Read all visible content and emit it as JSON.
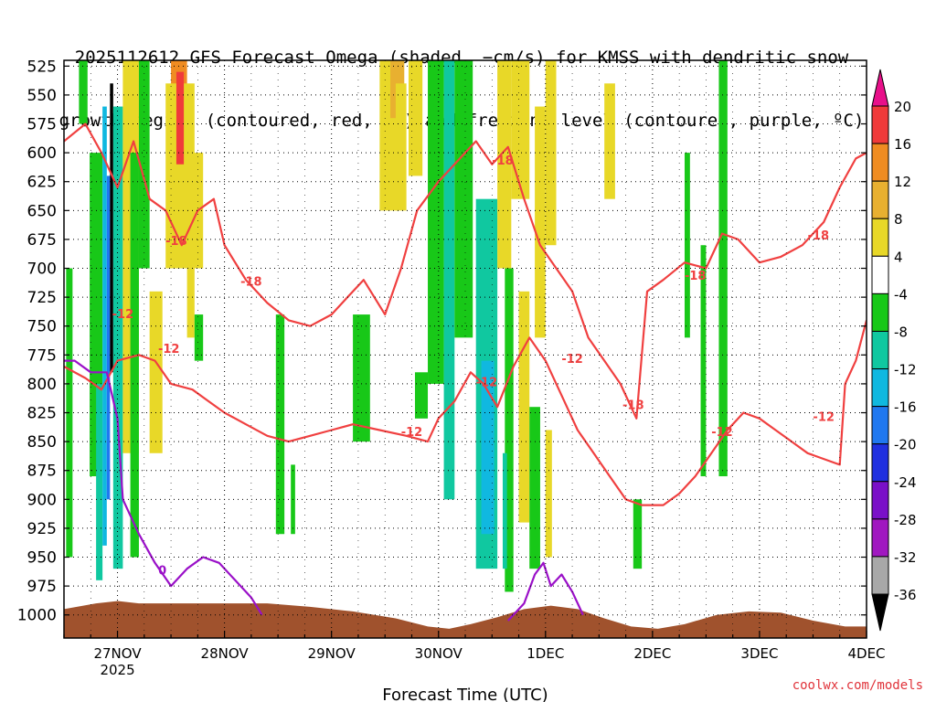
{
  "title_line1": "2025112612 GFS Forecast Omega (shaded, −cm/s) for KMSS with dendritic snow",
  "title_line2": "growth region (contoured, red, ºC) and freezing level (contoured, purple, ºC)",
  "credit": "coolwx.com/models",
  "chart_data": {
    "type": "heatmap",
    "title": "2025112612 GFS Forecast Omega (shaded, −cm/s) for KMSS with dendritic snow growth region (contoured, red, ºC) and freezing level (contoured, purple, ºC)",
    "xlabel": "Forecast Time (UTC)",
    "ylabel": "",
    "x_ticks": [
      {
        "day": 27,
        "label": "27NOV",
        "sublabel": "2025"
      },
      {
        "day": 28,
        "label": "28NOV"
      },
      {
        "day": 29,
        "label": "29NOV"
      },
      {
        "day": 30,
        "label": "30NOV"
      },
      {
        "day": 31,
        "label": "1DEC"
      },
      {
        "day": 32,
        "label": "2DEC"
      },
      {
        "day": 33,
        "label": "3DEC"
      },
      {
        "day": 34,
        "label": "4DEC"
      }
    ],
    "xlim_day": [
      26.5,
      34.0
    ],
    "y_ticks": [
      525,
      550,
      575,
      600,
      625,
      650,
      675,
      700,
      725,
      750,
      775,
      800,
      825,
      850,
      875,
      900,
      925,
      950,
      975,
      1000
    ],
    "ylim_hpa": [
      1020,
      520
    ],
    "grid": true,
    "colorbar": {
      "labels": [
        "20",
        "16",
        "12",
        "8",
        "4",
        "-4",
        "-8",
        "-12",
        "-16",
        "-20",
        "-24",
        "-28",
        "-32",
        "-36"
      ],
      "colors": [
        "#e8108a",
        "#f03a3a",
        "#ef8c22",
        "#e8b030",
        "#e8d828",
        "#ffffff",
        "#18c818",
        "#10c8a0",
        "#10b8e0",
        "#2078f0",
        "#2030e0",
        "#7a10c8",
        "#a018c0",
        "#a8a8a8",
        "#000000"
      ]
    },
    "contours": {
      "dgz_color": "#f04040",
      "freezing_color": "#9a10c8",
      "dgz_labels": [
        {
          "day": 27.05,
          "p": 743,
          "v": "-12"
        },
        {
          "day": 27.48,
          "p": 773,
          "v": "-12"
        },
        {
          "day": 27.55,
          "p": 680,
          "v": "-18"
        },
        {
          "day": 28.25,
          "p": 715,
          "v": "-18"
        },
        {
          "day": 29.75,
          "p": 845,
          "v": "-12"
        },
        {
          "day": 30.45,
          "p": 802,
          "v": "-12"
        },
        {
          "day": 30.6,
          "p": 610,
          "v": "-18"
        },
        {
          "day": 31.25,
          "p": 782,
          "v": "-12"
        },
        {
          "day": 31.82,
          "p": 822,
          "v": "-18"
        },
        {
          "day": 32.4,
          "p": 710,
          "v": "-18"
        },
        {
          "day": 32.65,
          "p": 845,
          "v": "-12"
        },
        {
          "day": 33.55,
          "p": 675,
          "v": "-18"
        },
        {
          "day": 33.6,
          "p": 832,
          "v": "-12"
        }
      ],
      "freezing_labels": [
        {
          "day": 27.42,
          "p": 965,
          "v": "0"
        }
      ]
    },
    "series": [
      {
        "kind": "omega_shading",
        "cells": [
          {
            "d0": 26.64,
            "d1": 26.72,
            "p0": 520,
            "p1": 575,
            "v": -6
          },
          {
            "d0": 26.52,
            "d1": 26.58,
            "p0": 700,
            "p1": 950,
            "v": -6
          },
          {
            "d0": 26.74,
            "d1": 26.86,
            "p0": 600,
            "p1": 880,
            "v": -6
          },
          {
            "d0": 26.8,
            "d1": 26.86,
            "p0": 800,
            "p1": 970,
            "v": -8
          },
          {
            "d0": 26.86,
            "d1": 26.9,
            "p0": 560,
            "p1": 940,
            "v": -12
          },
          {
            "d0": 26.9,
            "d1": 26.93,
            "p0": 620,
            "p1": 900,
            "v": -18
          },
          {
            "d0": 26.93,
            "d1": 26.96,
            "p0": 540,
            "p1": 790,
            "v": -36
          },
          {
            "d0": 26.96,
            "d1": 27.05,
            "p0": 560,
            "p1": 960,
            "v": -10
          },
          {
            "d0": 27.05,
            "d1": 27.2,
            "p0": 520,
            "p1": 860,
            "v": 5
          },
          {
            "d0": 27.12,
            "d1": 27.2,
            "p0": 600,
            "p1": 950,
            "v": -6
          },
          {
            "d0": 27.2,
            "d1": 27.3,
            "p0": 520,
            "p1": 700,
            "v": -6
          },
          {
            "d0": 27.3,
            "d1": 27.42,
            "p0": 720,
            "p1": 860,
            "v": 5
          },
          {
            "d0": 27.5,
            "d1": 27.65,
            "p0": 520,
            "p1": 620,
            "v": 14
          },
          {
            "d0": 27.45,
            "d1": 27.72,
            "p0": 540,
            "p1": 700,
            "v": 5
          },
          {
            "d0": 27.55,
            "d1": 27.62,
            "p0": 530,
            "p1": 610,
            "v": 18
          },
          {
            "d0": 27.7,
            "d1": 27.8,
            "p0": 600,
            "p1": 700,
            "v": 5
          },
          {
            "d0": 27.65,
            "d1": 27.72,
            "p0": 700,
            "p1": 760,
            "v": 5
          },
          {
            "d0": 27.72,
            "d1": 27.8,
            "p0": 740,
            "p1": 780,
            "v": -6
          },
          {
            "d0": 28.48,
            "d1": 28.56,
            "p0": 740,
            "p1": 930,
            "v": -6
          },
          {
            "d0": 28.62,
            "d1": 28.66,
            "p0": 870,
            "p1": 930,
            "v": -6
          },
          {
            "d0": 29.2,
            "d1": 29.36,
            "p0": 740,
            "p1": 850,
            "v": -6
          },
          {
            "d0": 29.45,
            "d1": 29.62,
            "p0": 520,
            "p1": 650,
            "v": 5
          },
          {
            "d0": 29.55,
            "d1": 29.68,
            "p0": 520,
            "p1": 570,
            "v": 10
          },
          {
            "d0": 29.6,
            "d1": 29.7,
            "p0": 540,
            "p1": 650,
            "v": 6
          },
          {
            "d0": 29.72,
            "d1": 29.85,
            "p0": 520,
            "p1": 620,
            "v": 5
          },
          {
            "d0": 29.78,
            "d1": 29.9,
            "p0": 790,
            "p1": 830,
            "v": -6
          },
          {
            "d0": 29.9,
            "d1": 30.05,
            "p0": 520,
            "p1": 800,
            "v": -6
          },
          {
            "d0": 30.05,
            "d1": 30.15,
            "p0": 520,
            "p1": 900,
            "v": -8
          },
          {
            "d0": 30.15,
            "d1": 30.32,
            "p0": 520,
            "p1": 760,
            "v": -6
          },
          {
            "d0": 30.35,
            "d1": 30.55,
            "p0": 640,
            "p1": 960,
            "v": -8
          },
          {
            "d0": 30.4,
            "d1": 30.52,
            "p0": 780,
            "p1": 930,
            "v": -12
          },
          {
            "d0": 30.55,
            "d1": 30.68,
            "p0": 520,
            "p1": 700,
            "v": 5
          },
          {
            "d0": 30.62,
            "d1": 30.7,
            "p0": 700,
            "p1": 980,
            "v": -6
          },
          {
            "d0": 30.68,
            "d1": 30.85,
            "p0": 520,
            "p1": 640,
            "v": 5
          },
          {
            "d0": 30.75,
            "d1": 30.85,
            "p0": 720,
            "p1": 920,
            "v": 5
          },
          {
            "d0": 30.9,
            "d1": 31.0,
            "p0": 560,
            "p1": 760,
            "v": 5
          },
          {
            "d0": 30.85,
            "d1": 30.95,
            "p0": 820,
            "p1": 960,
            "v": -6
          },
          {
            "d0": 31.0,
            "d1": 31.1,
            "p0": 520,
            "p1": 680,
            "v": 5
          },
          {
            "d0": 31.55,
            "d1": 31.65,
            "p0": 540,
            "p1": 640,
            "v": 5
          },
          {
            "d0": 31.82,
            "d1": 31.9,
            "p0": 900,
            "p1": 960,
            "v": -6
          },
          {
            "d0": 32.62,
            "d1": 32.7,
            "p0": 520,
            "p1": 880,
            "v": -6
          },
          {
            "d0": 32.3,
            "d1": 32.35,
            "p0": 600,
            "p1": 760,
            "v": -6
          },
          {
            "d0": 32.45,
            "d1": 32.5,
            "p0": 680,
            "p1": 880,
            "v": -6
          },
          {
            "d0": 30.6,
            "d1": 30.64,
            "p0": 860,
            "p1": 960,
            "v": -10
          },
          {
            "d0": 31.0,
            "d1": 31.06,
            "p0": 840,
            "p1": 950,
            "v": 5
          }
        ]
      },
      {
        "kind": "dgz_isotherm",
        "name": "-12",
        "points": [
          [
            26.5,
            785
          ],
          [
            26.7,
            795
          ],
          [
            26.85,
            805
          ],
          [
            27.0,
            780
          ],
          [
            27.2,
            775
          ],
          [
            27.35,
            780
          ],
          [
            27.5,
            800
          ],
          [
            27.7,
            805
          ],
          [
            27.85,
            815
          ],
          [
            28.0,
            825
          ],
          [
            28.2,
            835
          ],
          [
            28.4,
            845
          ],
          [
            28.6,
            850
          ],
          [
            28.8,
            845
          ],
          [
            29.0,
            840
          ],
          [
            29.2,
            835
          ],
          [
            29.45,
            840
          ],
          [
            29.7,
            845
          ],
          [
            29.9,
            850
          ],
          [
            30.0,
            830
          ],
          [
            30.15,
            815
          ],
          [
            30.3,
            790
          ],
          [
            30.42,
            800
          ],
          [
            30.55,
            820
          ],
          [
            30.7,
            785
          ],
          [
            30.85,
            760
          ],
          [
            31.0,
            780
          ],
          [
            31.15,
            810
          ],
          [
            31.3,
            840
          ],
          [
            31.45,
            860
          ],
          [
            31.6,
            880
          ],
          [
            31.75,
            900
          ],
          [
            31.9,
            905
          ],
          [
            32.1,
            905
          ],
          [
            32.25,
            895
          ],
          [
            32.4,
            880
          ],
          [
            32.55,
            860
          ],
          [
            32.7,
            840
          ],
          [
            32.85,
            825
          ],
          [
            33.0,
            830
          ],
          [
            33.15,
            840
          ],
          [
            33.3,
            850
          ],
          [
            33.45,
            860
          ],
          [
            33.6,
            865
          ],
          [
            33.75,
            870
          ],
          [
            33.8,
            800
          ],
          [
            33.9,
            780
          ],
          [
            34.0,
            745
          ]
        ]
      },
      {
        "kind": "dgz_isotherm",
        "name": "-18",
        "points": [
          [
            26.5,
            590
          ],
          [
            26.7,
            575
          ],
          [
            26.85,
            600
          ],
          [
            27.0,
            630
          ],
          [
            27.15,
            590
          ],
          [
            27.3,
            640
          ],
          [
            27.45,
            650
          ],
          [
            27.6,
            680
          ],
          [
            27.75,
            650
          ],
          [
            27.9,
            640
          ],
          [
            28.0,
            680
          ],
          [
            28.2,
            710
          ],
          [
            28.4,
            730
          ],
          [
            28.6,
            745
          ],
          [
            28.8,
            750
          ],
          [
            29.0,
            740
          ],
          [
            29.15,
            725
          ],
          [
            29.3,
            710
          ],
          [
            29.5,
            740
          ],
          [
            29.65,
            700
          ],
          [
            29.8,
            650
          ],
          [
            30.0,
            625
          ],
          [
            30.2,
            605
          ],
          [
            30.35,
            590
          ],
          [
            30.5,
            610
          ],
          [
            30.65,
            595
          ],
          [
            30.8,
            640
          ],
          [
            30.95,
            680
          ],
          [
            31.1,
            700
          ],
          [
            31.25,
            720
          ],
          [
            31.4,
            760
          ],
          [
            31.55,
            780
          ],
          [
            31.7,
            800
          ],
          [
            31.85,
            830
          ],
          [
            31.95,
            720
          ],
          [
            32.1,
            710
          ],
          [
            32.3,
            695
          ],
          [
            32.5,
            700
          ],
          [
            32.65,
            670
          ],
          [
            32.8,
            675
          ],
          [
            33.0,
            695
          ],
          [
            33.2,
            690
          ],
          [
            33.4,
            680
          ],
          [
            33.6,
            660
          ],
          [
            33.75,
            630
          ],
          [
            33.9,
            605
          ],
          [
            34.0,
            600
          ]
        ]
      },
      {
        "kind": "freezing_level",
        "name": "0",
        "points": [
          [
            26.5,
            780
          ],
          [
            26.6,
            780
          ],
          [
            26.75,
            790
          ],
          [
            26.9,
            790
          ],
          [
            27.0,
            830
          ],
          [
            27.05,
            900
          ],
          [
            27.2,
            930
          ],
          [
            27.35,
            955
          ],
          [
            27.5,
            975
          ],
          [
            27.65,
            960
          ],
          [
            27.8,
            950
          ],
          [
            27.95,
            955
          ],
          [
            28.1,
            970
          ],
          [
            28.25,
            985
          ],
          [
            28.35,
            1000
          ]
        ]
      },
      {
        "kind": "freezing_level",
        "name": "0",
        "points": [
          [
            30.65,
            1005
          ],
          [
            30.8,
            990
          ],
          [
            30.9,
            965
          ],
          [
            30.98,
            955
          ],
          [
            31.05,
            975
          ],
          [
            31.15,
            965
          ],
          [
            31.25,
            980
          ],
          [
            31.35,
            1000
          ]
        ]
      },
      {
        "kind": "terrain_surface_pressure",
        "points": [
          [
            26.5,
            995
          ],
          [
            26.8,
            990
          ],
          [
            27.0,
            988
          ],
          [
            27.2,
            990
          ],
          [
            27.6,
            990
          ],
          [
            28.0,
            990
          ],
          [
            28.4,
            990
          ],
          [
            28.8,
            993
          ],
          [
            29.2,
            997
          ],
          [
            29.6,
            1003
          ],
          [
            29.9,
            1010
          ],
          [
            30.1,
            1012
          ],
          [
            30.3,
            1008
          ],
          [
            30.55,
            1002
          ],
          [
            30.8,
            995
          ],
          [
            31.05,
            992
          ],
          [
            31.3,
            995
          ],
          [
            31.55,
            1003
          ],
          [
            31.8,
            1010
          ],
          [
            32.05,
            1012
          ],
          [
            32.3,
            1008
          ],
          [
            32.6,
            1000
          ],
          [
            32.9,
            997
          ],
          [
            33.2,
            998
          ],
          [
            33.5,
            1005
          ],
          [
            33.8,
            1010
          ],
          [
            34.0,
            1010
          ]
        ]
      }
    ]
  }
}
